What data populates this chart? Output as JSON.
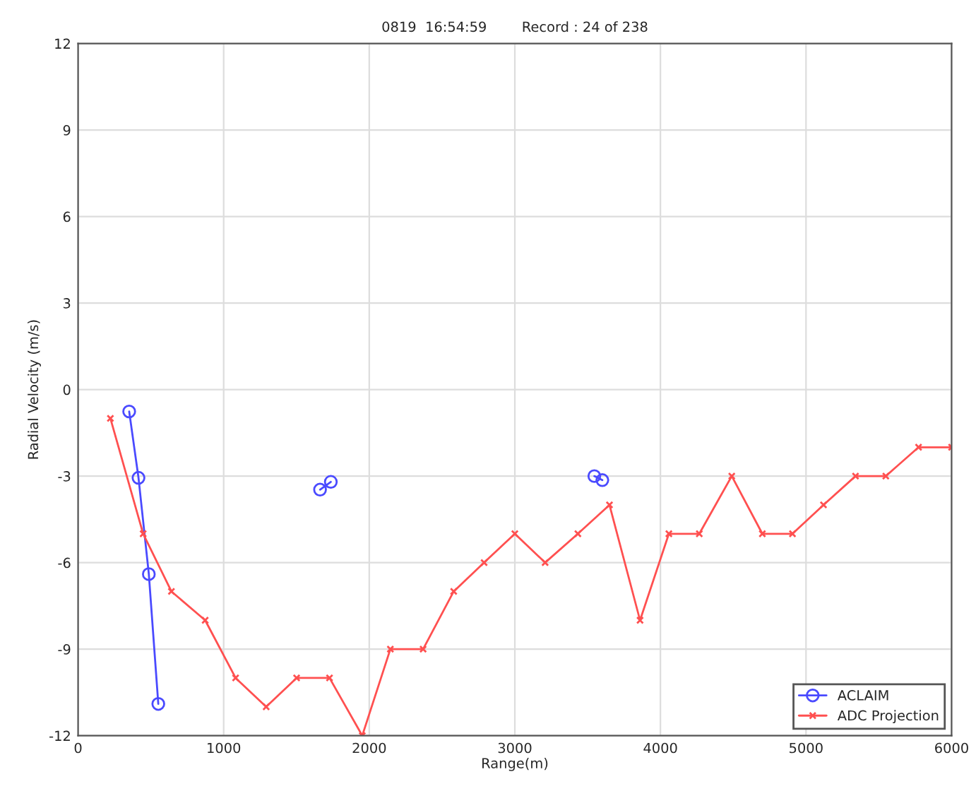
{
  "chart_data": {
    "type": "line",
    "title": "0819  16:54:59        Record : 24 of 238",
    "xlabel": "Range(m)",
    "ylabel": "Radial Velocity (m/s)",
    "xlim": [
      0,
      6000
    ],
    "xticks": [
      0,
      1000,
      2000,
      3000,
      4000,
      5000,
      6000
    ],
    "ylim": [
      -12,
      12
    ],
    "yticks": [
      -12,
      -9,
      -6,
      -3,
      0,
      3,
      6,
      9,
      12
    ],
    "grid": true,
    "legend": "bottom right",
    "line_style": "solid",
    "series": [
      {
        "name": "ACLAIM",
        "color": "#4a4aff",
        "marker": "circle",
        "x": [
          351,
          415,
          486,
          551,
          1100,
          1662,
          1736,
          2600,
          3546,
          3601
        ],
        "values": [
          -0.76,
          -3.06,
          -6.4,
          -10.9,
          null,
          -3.47,
          -3.2,
          null,
          -3.0,
          -3.14
        ]
      },
      {
        "name": "ADC Projection",
        "color": "#ff5050",
        "marker": "cross",
        "x": [
          222,
          447,
          641,
          873,
          1082,
          1292,
          1501,
          1727,
          1952,
          2145,
          2370,
          2580,
          2789,
          3000,
          3208,
          3433,
          3650,
          3860,
          4058,
          4267,
          4490,
          4700,
          4907,
          5120,
          5340,
          5548,
          5773,
          6000
        ],
        "values": [
          -1.0,
          -5,
          -7,
          -8,
          -10,
          -11,
          -10,
          -10,
          -12,
          -9,
          -9,
          -7,
          -6,
          -5,
          -6,
          -5,
          -4,
          -8,
          -5,
          -5,
          -3,
          -5,
          -5,
          -4,
          -3,
          -3,
          -2,
          -2
        ]
      }
    ]
  }
}
